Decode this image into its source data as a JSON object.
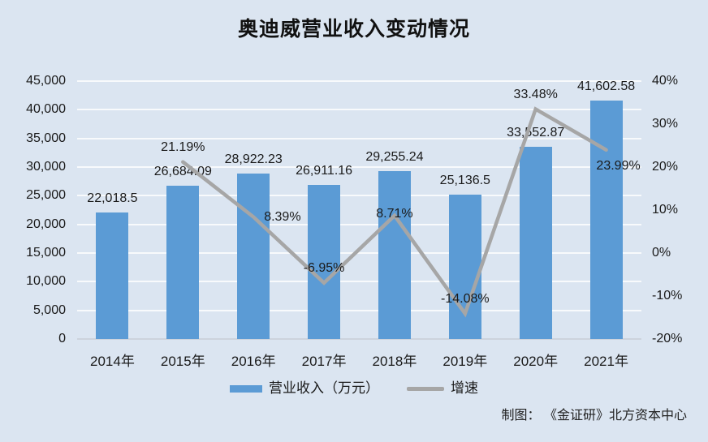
{
  "header": {
    "title": "奥迪威营业收入变动情况"
  },
  "chart_data": {
    "type": "bar",
    "title": "奥迪威营业收入变动情况",
    "categories": [
      "2014年",
      "2015年",
      "2016年",
      "2017年",
      "2018年",
      "2019年",
      "2020年",
      "2021年"
    ],
    "series": [
      {
        "name": "营业收入（万元）",
        "type": "bar",
        "axis": "left",
        "color": "#5b9bd5",
        "values": [
          22018.5,
          26684.09,
          28922.23,
          26911.16,
          29255.24,
          25136.5,
          33552.87,
          41602.58
        ],
        "labels": [
          "22,018.5",
          "26,684.09",
          "28,922.23",
          "26,911.16",
          "29,255.24",
          "25,136.5",
          "33,552.87",
          "41,602.58"
        ]
      },
      {
        "name": "增速",
        "type": "line",
        "axis": "right",
        "color": "#a6a6a6",
        "values": [
          null,
          21.19,
          8.39,
          -6.95,
          8.71,
          -14.08,
          33.48,
          23.99
        ],
        "labels": [
          null,
          "21.19%",
          "8.39%",
          "-6.95%",
          "8.71%",
          "-14.08%",
          "33.48%",
          "23.99%"
        ],
        "label_pos": [
          null,
          "above",
          "right",
          "above",
          "peak",
          "above",
          "above",
          "below"
        ]
      }
    ],
    "left_axis": {
      "min": 0,
      "max": 45000,
      "step": 5000,
      "tick_labels": [
        "0",
        "5,000",
        "10,000",
        "15,000",
        "20,000",
        "25,000",
        "30,000",
        "35,000",
        "40,000",
        "45,000"
      ]
    },
    "right_axis": {
      "min": -20,
      "max": 40,
      "step": 10,
      "tick_labels": [
        "-20%",
        "-10%",
        "0%",
        "10%",
        "20%",
        "30%",
        "40%"
      ]
    },
    "grid": true,
    "legend_position": "bottom"
  },
  "legend": {
    "items": [
      {
        "label": "营业收入（万元）",
        "swatch": "bar"
      },
      {
        "label": "增速",
        "swatch": "line"
      }
    ]
  },
  "footer": {
    "credit": "制图： 《金证研》北方资本中心"
  },
  "colors": {
    "background": "#dbe5f1",
    "bar": "#5b9bd5",
    "line": "#a6a6a6",
    "text": "#1a1a1a",
    "grid": "rgba(255,255,255,0.8)",
    "axis_line": "#ccd3dd"
  }
}
